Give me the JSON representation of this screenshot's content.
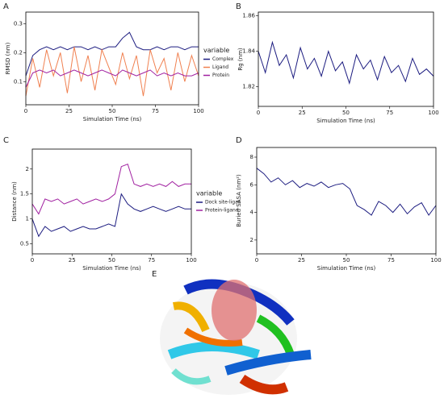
{
  "chart_data": [
    {
      "type": "line",
      "panel": "A",
      "xlabel": "Simulation Time (ns)",
      "ylabel": "RMSD (nm)",
      "x": [
        0,
        4,
        8,
        12,
        16,
        20,
        24,
        28,
        32,
        36,
        40,
        44,
        48,
        52,
        56,
        60,
        64,
        68,
        72,
        76,
        80,
        84,
        88,
        92,
        96,
        100
      ],
      "xlim": [
        0,
        100
      ],
      "xticks": [
        0,
        25,
        50,
        75,
        100
      ],
      "ylim": [
        0.02,
        0.34
      ],
      "yticks": [
        0.1,
        0.2,
        0.3
      ],
      "legend": "right",
      "legend_title": "variable",
      "series": [
        {
          "name": "Complex",
          "color": "#1c1c80",
          "values": [
            0.12,
            0.19,
            0.21,
            0.22,
            0.21,
            0.22,
            0.21,
            0.22,
            0.22,
            0.21,
            0.22,
            0.21,
            0.22,
            0.22,
            0.25,
            0.27,
            0.22,
            0.21,
            0.21,
            0.22,
            0.21,
            0.22,
            0.22,
            0.21,
            0.22,
            0.22
          ]
        },
        {
          "name": "Ligand",
          "color": "#f08050",
          "values": [
            0.05,
            0.18,
            0.08,
            0.21,
            0.12,
            0.2,
            0.06,
            0.22,
            0.1,
            0.19,
            0.07,
            0.21,
            0.15,
            0.09,
            0.2,
            0.11,
            0.19,
            0.05,
            0.21,
            0.13,
            0.18,
            0.07,
            0.2,
            0.1,
            0.19,
            0.12
          ]
        },
        {
          "name": "Protein",
          "color": "#a020a0",
          "values": [
            0.08,
            0.13,
            0.14,
            0.13,
            0.14,
            0.12,
            0.13,
            0.14,
            0.13,
            0.12,
            0.13,
            0.14,
            0.13,
            0.12,
            0.14,
            0.13,
            0.12,
            0.13,
            0.14,
            0.12,
            0.13,
            0.12,
            0.13,
            0.12,
            0.12,
            0.13
          ]
        }
      ]
    },
    {
      "type": "line",
      "panel": "B",
      "xlabel": "Simulation Time (ns)",
      "ylabel": "Rg (nm)",
      "x": [
        0,
        4,
        8,
        12,
        16,
        20,
        24,
        28,
        32,
        36,
        40,
        44,
        48,
        52,
        56,
        60,
        64,
        68,
        72,
        76,
        80,
        84,
        88,
        92,
        96,
        100
      ],
      "xlim": [
        0,
        100
      ],
      "xticks": [
        0,
        25,
        50,
        75,
        100
      ],
      "ylim": [
        1.809,
        1.862
      ],
      "yticks": [
        1.82,
        1.84,
        1.86
      ],
      "series": [
        {
          "name": "Rg",
          "color": "#1c1c80",
          "values": [
            1.84,
            1.828,
            1.845,
            1.832,
            1.838,
            1.825,
            1.842,
            1.83,
            1.836,
            1.826,
            1.84,
            1.829,
            1.834,
            1.822,
            1.838,
            1.83,
            1.835,
            1.824,
            1.837,
            1.828,
            1.832,
            1.823,
            1.836,
            1.827,
            1.83,
            1.826
          ]
        }
      ]
    },
    {
      "type": "line",
      "panel": "C",
      "xlabel": "Simulation Time (ns)",
      "ylabel": "Distance (nm)",
      "x": [
        0,
        4,
        8,
        12,
        16,
        20,
        24,
        28,
        32,
        36,
        40,
        44,
        48,
        52,
        56,
        60,
        64,
        68,
        72,
        76,
        80,
        84,
        88,
        92,
        96,
        100
      ],
      "xlim": [
        0,
        100
      ],
      "xticks": [
        0,
        25,
        50,
        75,
        100
      ],
      "ylim": [
        0.3,
        2.4
      ],
      "yticks": [
        0.5,
        1,
        1.5,
        2
      ],
      "legend": "right",
      "legend_title": "variable",
      "series": [
        {
          "name": "Dock site-ligan",
          "color": "#1c1c80",
          "values": [
            1.0,
            0.65,
            0.85,
            0.75,
            0.8,
            0.85,
            0.75,
            0.8,
            0.85,
            0.8,
            0.8,
            0.85,
            0.9,
            0.85,
            1.5,
            1.3,
            1.2,
            1.15,
            1.2,
            1.25,
            1.2,
            1.15,
            1.2,
            1.25,
            1.2,
            1.2
          ]
        },
        {
          "name": "Protein-ligand",
          "color": "#a020a0",
          "values": [
            1.3,
            1.1,
            1.4,
            1.35,
            1.4,
            1.3,
            1.35,
            1.4,
            1.3,
            1.35,
            1.4,
            1.35,
            1.4,
            1.5,
            2.05,
            2.1,
            1.7,
            1.65,
            1.7,
            1.65,
            1.7,
            1.65,
            1.75,
            1.65,
            1.7,
            1.7
          ]
        }
      ]
    },
    {
      "type": "line",
      "panel": "D",
      "xlabel": "Simulation Time (ns)",
      "ylabel": "Buried SASA (nm²)",
      "x": [
        0,
        4,
        8,
        12,
        16,
        20,
        24,
        28,
        32,
        36,
        40,
        44,
        48,
        52,
        56,
        60,
        64,
        68,
        72,
        76,
        80,
        84,
        88,
        92,
        96,
        100
      ],
      "xlim": [
        0,
        100
      ],
      "xticks": [
        0,
        25,
        50,
        75,
        100
      ],
      "ylim": [
        1,
        8.7
      ],
      "yticks": [
        2,
        4,
        6,
        8
      ],
      "series": [
        {
          "name": "Buried SASA",
          "color": "#1c1c80",
          "values": [
            7.2,
            6.8,
            6.2,
            6.5,
            6.0,
            6.3,
            5.8,
            6.1,
            5.9,
            6.2,
            5.8,
            6.0,
            6.1,
            5.7,
            4.5,
            4.2,
            3.8,
            4.8,
            4.5,
            4.0,
            4.6,
            3.9,
            4.4,
            4.7,
            3.8,
            4.5
          ]
        }
      ]
    }
  ],
  "image_panel": {
    "label": "E"
  }
}
